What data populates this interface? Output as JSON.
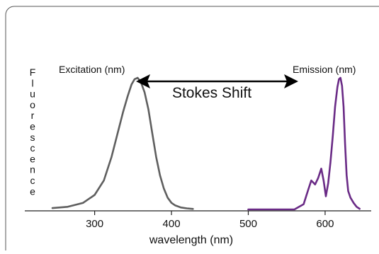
{
  "chart_data": {
    "type": "line",
    "xlabel": "wavelength (nm)",
    "ylabel": "Fluorescence",
    "xlim": [
      210,
      660
    ],
    "ylim": [
      0,
      1
    ],
    "x_ticks": [
      300,
      400,
      500,
      600
    ],
    "grid": false,
    "annotation": "Stokes Shift",
    "series": [
      {
        "name": "Excitation (nm)",
        "color": "#5f5f5f",
        "x": [
          245,
          265,
          285,
          300,
          312,
          322,
          330,
          337,
          343,
          348,
          352,
          356,
          360,
          365,
          370,
          375,
          380,
          385,
          390,
          395,
          400,
          405,
          412,
          420,
          428
        ],
        "y": [
          0.01,
          0.02,
          0.05,
          0.11,
          0.22,
          0.4,
          0.58,
          0.74,
          0.86,
          0.95,
          0.99,
          1.0,
          0.97,
          0.89,
          0.76,
          0.58,
          0.4,
          0.26,
          0.16,
          0.09,
          0.05,
          0.03,
          0.015,
          0.008,
          0.004
        ]
      },
      {
        "name": "Emission (nm)",
        "color": "#6a2b86",
        "x": [
          500,
          560,
          572,
          578,
          582,
          587,
          591,
          595,
          598,
          601,
          604,
          607,
          610,
          613,
          616,
          618,
          620,
          622,
          624,
          626,
          628,
          630,
          633,
          637,
          641,
          645
        ],
        "y": [
          0.0,
          0.0,
          0.04,
          0.15,
          0.22,
          0.19,
          0.24,
          0.31,
          0.22,
          0.1,
          0.2,
          0.36,
          0.56,
          0.78,
          0.93,
          0.99,
          1.0,
          0.94,
          0.78,
          0.5,
          0.26,
          0.14,
          0.09,
          0.05,
          0.02,
          0.005
        ]
      }
    ]
  }
}
